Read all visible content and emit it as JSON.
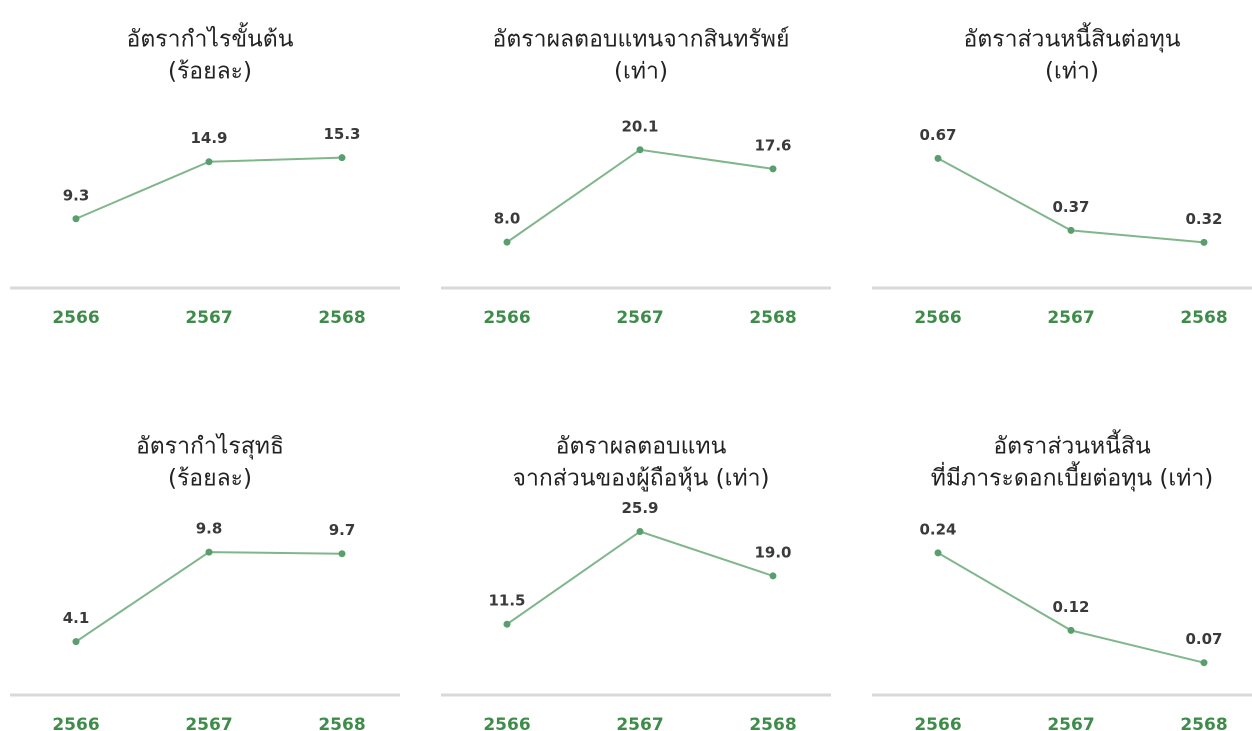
{
  "chart_data": [
    {
      "type": "line",
      "title": [
        "อัตรากำไรขั้นต้น",
        "(ร้อยละ)"
      ],
      "categories": [
        "2566",
        "2567",
        "2568"
      ],
      "values": [
        9.3,
        14.9,
        15.3
      ],
      "value_labels": [
        "9.3",
        "14.9",
        "15.3"
      ],
      "ylim": [
        2.5,
        19
      ],
      "color": "#80b68c"
    },
    {
      "type": "line",
      "title": [
        "อัตราผลตอบแทนจากสินทรัพย์",
        "(เท่า)"
      ],
      "categories": [
        "2566",
        "2567",
        "2568"
      ],
      "values": [
        8.0,
        20.1,
        17.6
      ],
      "value_labels": [
        "8.0",
        "20.1",
        "17.6"
      ],
      "ylim": [
        2,
        24
      ],
      "color": "#80b68c"
    },
    {
      "type": "line",
      "title": [
        "อัตราส่วนหนี้สินต่อทุน",
        "(เท่า)"
      ],
      "categories": [
        "2566",
        "2567",
        "2568"
      ],
      "values": [
        0.67,
        0.37,
        0.32
      ],
      "value_labels": [
        "0.67",
        "0.37",
        "0.32"
      ],
      "ylim": [
        0.13,
        0.83
      ],
      "color": "#80b68c"
    },
    {
      "type": "line",
      "title": [
        "อัตรากำไรสุทธิ",
        "(ร้อยละ)"
      ],
      "categories": [
        "2566",
        "2567",
        "2568"
      ],
      "values": [
        4.1,
        9.8,
        9.7
      ],
      "value_labels": [
        "4.1",
        "9.8",
        "9.7"
      ],
      "ylim": [
        0.7,
        11.4
      ],
      "color": "#80b68c"
    },
    {
      "type": "line",
      "title": [
        "อัตราผลตอบแทน",
        "จากส่วนของผู้ถือหุ้น (เท่า)"
      ],
      "categories": [
        "2566",
        "2567",
        "2568"
      ],
      "values": [
        11.5,
        25.9,
        19.0
      ],
      "value_labels": [
        "11.5",
        "25.9",
        "19.0"
      ],
      "ylim": [
        0.5,
        26.6
      ],
      "color": "#80b68c"
    },
    {
      "type": "line",
      "title": [
        "อัตราส่วนหนี้สิน",
        "ที่มีภาระดอกเบี้ยต่อทุน (เท่า)"
      ],
      "categories": [
        "2566",
        "2567",
        "2568"
      ],
      "values": [
        0.24,
        0.12,
        0.07
      ],
      "value_labels": [
        "0.24",
        "0.12",
        "0.07"
      ],
      "ylim": [
        0.02,
        0.28
      ],
      "color": "#80b68c"
    }
  ]
}
